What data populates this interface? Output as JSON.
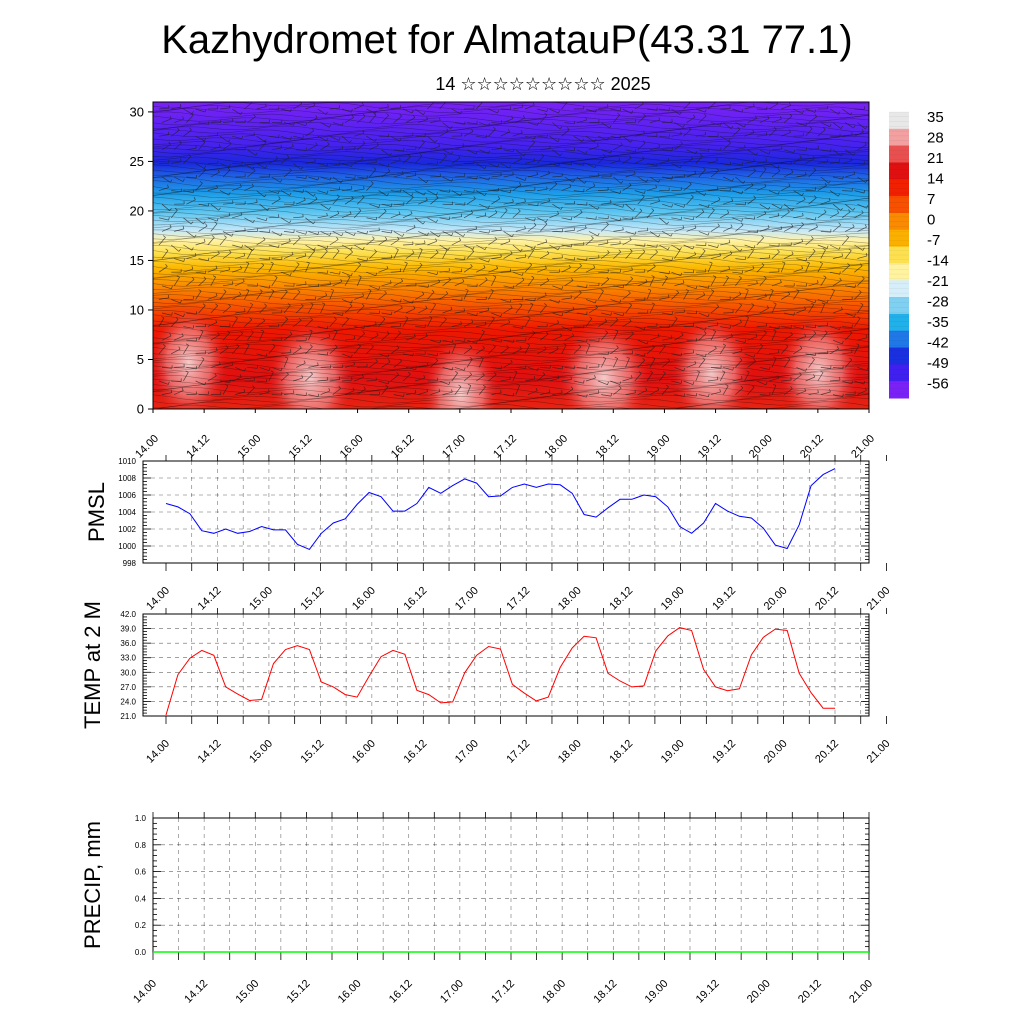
{
  "title": "Kazhydromet for AlmatauP(43.31 77.1)",
  "subtitle": "14 ☆☆☆☆☆☆☆☆☆ 2025",
  "x_tick_labels": [
    "14.00",
    "14.12",
    "15.00",
    "15.12",
    "16.00",
    "16.12",
    "17.00",
    "17.12",
    "18.00",
    "18.12",
    "19.00",
    "19.12",
    "20.00",
    "20.12",
    "21.00"
  ],
  "colors": {
    "pmsl_line": "#0000ff",
    "temp_line": "#ff0000",
    "precip_line": "#00ff00",
    "colorbar": [
      "#e8e8e8",
      "#f2a0a0",
      "#e85050",
      "#e01010",
      "#f02000",
      "#f65000",
      "#fa8a00",
      "#fbb000",
      "#fde050",
      "#fff3a0",
      "#d6eefa",
      "#80d0f2",
      "#20b0ea",
      "#2078e6",
      "#1a30e0",
      "#4020f0",
      "#7a22f5"
    ]
  },
  "chart_data": [
    {
      "type": "heatmap",
      "description_free": true,
      "x_tick_labels": [
        "14.00",
        "14.12",
        "15.00",
        "15.12",
        "16.00",
        "16.12",
        "17.00",
        "17.12",
        "18.00",
        "18.12",
        "19.00",
        "19.12",
        "20.00",
        "20.12",
        "21.00"
      ],
      "y_ticks": [
        0,
        5,
        10,
        15,
        20,
        25,
        30
      ],
      "ylim": [
        0,
        31
      ],
      "colorbar_labels": [
        "35",
        "28",
        "21",
        "14",
        "7",
        "0",
        "-7",
        "-14",
        "-21",
        "-28",
        "-35",
        "-42",
        "-49",
        "-56"
      ],
      "colorbar_range": [
        -63,
        42
      ],
      "wind_barbs": true
    },
    {
      "type": "line",
      "ylabel": "PMSL",
      "ylim": [
        998,
        1010
      ],
      "y_ticks": [
        998,
        1000,
        1002,
        1004,
        1006,
        1008,
        1010
      ],
      "y_tick_labels": [
        "998",
        "1000",
        "1002",
        "1004",
        "1006",
        "1008",
        "1010"
      ],
      "x_tick_labels": [
        "14.00",
        "14.12",
        "15.00",
        "15.12",
        "16.00",
        "16.12",
        "17.00",
        "17.12",
        "18.00",
        "18.12",
        "19.00",
        "19.12",
        "20.00",
        "20.12",
        "21.00"
      ],
      "values": [
        1005.0,
        1004.6,
        1003.8,
        1001.8,
        1001.5,
        1002.0,
        1001.5,
        1001.7,
        1002.3,
        1001.9,
        1001.9,
        1000.2,
        999.6,
        1001.5,
        1002.7,
        1003.2,
        1004.9,
        1006.3,
        1005.8,
        1004.1,
        1004.1,
        1005.0,
        1006.9,
        1006.2,
        1007.1,
        1007.9,
        1007.4,
        1005.8,
        1005.9,
        1006.9,
        1007.3,
        1006.9,
        1007.3,
        1007.2,
        1006.2,
        1003.7,
        1003.4,
        1004.5,
        1005.5,
        1005.5,
        1006.0,
        1005.8,
        1004.6,
        1002.3,
        1001.5,
        1002.7,
        1005.0,
        1004.1,
        1003.5,
        1003.3,
        1002.1,
        1000.1,
        999.7,
        1002.5,
        1007.1,
        1008.4,
        1009.1
      ]
    },
    {
      "type": "line",
      "ylabel": "TEMP at 2 M",
      "ylim": [
        21.0,
        42.0
      ],
      "y_ticks": [
        21.0,
        24.0,
        27.0,
        30.0,
        33.0,
        36.0,
        39.0,
        42.0
      ],
      "y_tick_labels": [
        "21.0",
        "24.0",
        "27.0",
        "30.0",
        "33.0",
        "36.0",
        "39.0",
        "42.0"
      ],
      "x_tick_labels": [
        "14.00",
        "14.12",
        "15.00",
        "15.12",
        "16.00",
        "16.12",
        "17.00",
        "17.12",
        "18.00",
        "18.12",
        "19.00",
        "19.12",
        "20.00",
        "20.12",
        "21.00"
      ],
      "values": [
        21.2,
        29.5,
        32.9,
        34.5,
        33.5,
        27.0,
        25.5,
        24.2,
        24.4,
        31.8,
        34.7,
        35.5,
        34.7,
        28.0,
        27.0,
        25.4,
        24.9,
        29.2,
        33.2,
        34.5,
        33.7,
        26.3,
        25.4,
        23.7,
        23.9,
        29.9,
        33.5,
        35.3,
        34.8,
        27.5,
        25.7,
        24.1,
        24.9,
        31.0,
        35.0,
        37.4,
        37.1,
        29.8,
        28.2,
        27.0,
        27.2,
        34.4,
        37.5,
        39.2,
        38.6,
        30.6,
        27.0,
        26.2,
        26.6,
        33.6,
        37.2,
        38.9,
        38.6,
        29.8,
        25.8,
        22.6,
        22.6
      ]
    },
    {
      "type": "line",
      "ylabel": "PRECIP, mm",
      "ylim": [
        0.0,
        1.0
      ],
      "y_ticks": [
        0.0,
        0.2,
        0.4,
        0.6,
        0.8,
        1.0
      ],
      "y_tick_labels": [
        "0.0",
        "0.2",
        "0.4",
        "0.6",
        "0.8",
        "1.0"
      ],
      "x_tick_labels": [
        "14.00",
        "14.12",
        "15.00",
        "15.12",
        "16.00",
        "16.12",
        "17.00",
        "17.12",
        "18.00",
        "18.12",
        "19.00",
        "19.12",
        "20.00",
        "20.12",
        "21.00"
      ],
      "values": [
        0,
        0,
        0,
        0,
        0,
        0,
        0,
        0,
        0,
        0,
        0,
        0,
        0,
        0,
        0,
        0,
        0,
        0,
        0,
        0,
        0,
        0,
        0,
        0,
        0,
        0,
        0,
        0,
        0,
        0,
        0,
        0,
        0,
        0,
        0,
        0,
        0,
        0,
        0,
        0,
        0,
        0,
        0,
        0,
        0,
        0,
        0,
        0,
        0,
        0,
        0,
        0,
        0,
        0,
        0,
        0,
        0
      ]
    }
  ]
}
